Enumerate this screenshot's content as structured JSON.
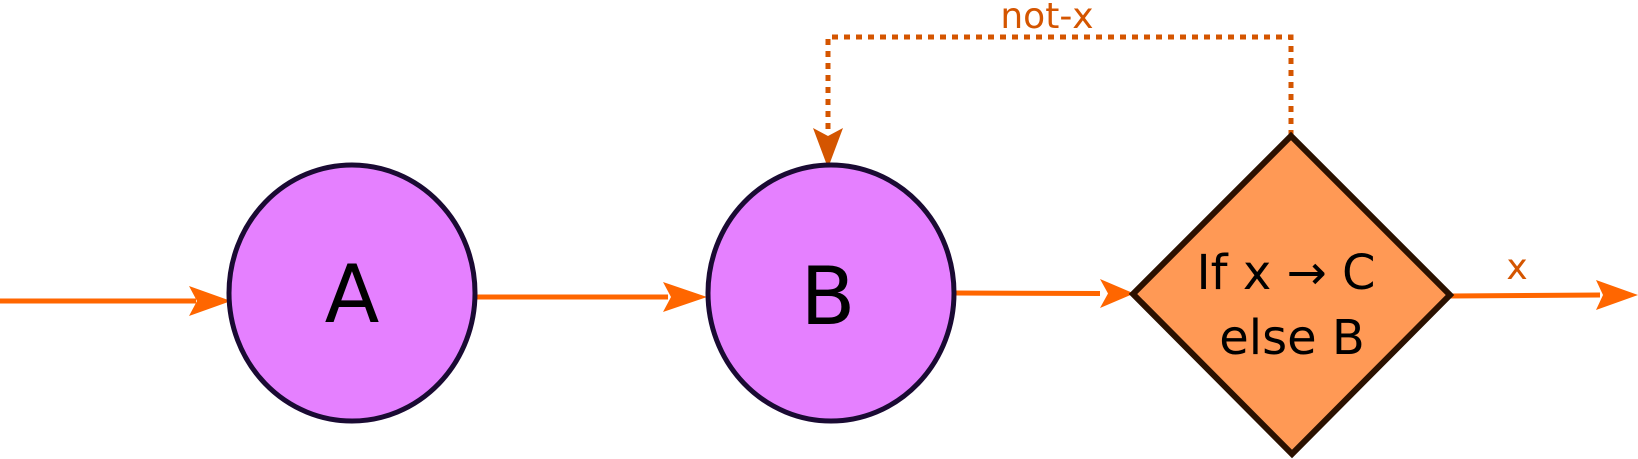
{
  "nodes": {
    "a": {
      "label": "A",
      "shape": "circle",
      "fill": "#e580ff",
      "stroke": "#1a0a33"
    },
    "b": {
      "label": "B",
      "shape": "circle",
      "fill": "#e580ff",
      "stroke": "#1a0a33"
    },
    "decision": {
      "shape": "diamond",
      "line1": "If x → C",
      "line2": "else B",
      "fill": "#ff9955",
      "stroke": "#2b1100"
    }
  },
  "edges": {
    "entry_to_a": {
      "label": "",
      "color": "#ff6600"
    },
    "a_to_b": {
      "label": "",
      "color": "#ff6600"
    },
    "b_to_decision": {
      "label": "",
      "color": "#ff6600"
    },
    "decision_exit": {
      "label": "x",
      "color": "#ff6600",
      "label_color": "#d45500"
    },
    "decision_to_b_loop": {
      "label": "not-x",
      "color": "#d45500",
      "style": "dotted"
    }
  }
}
